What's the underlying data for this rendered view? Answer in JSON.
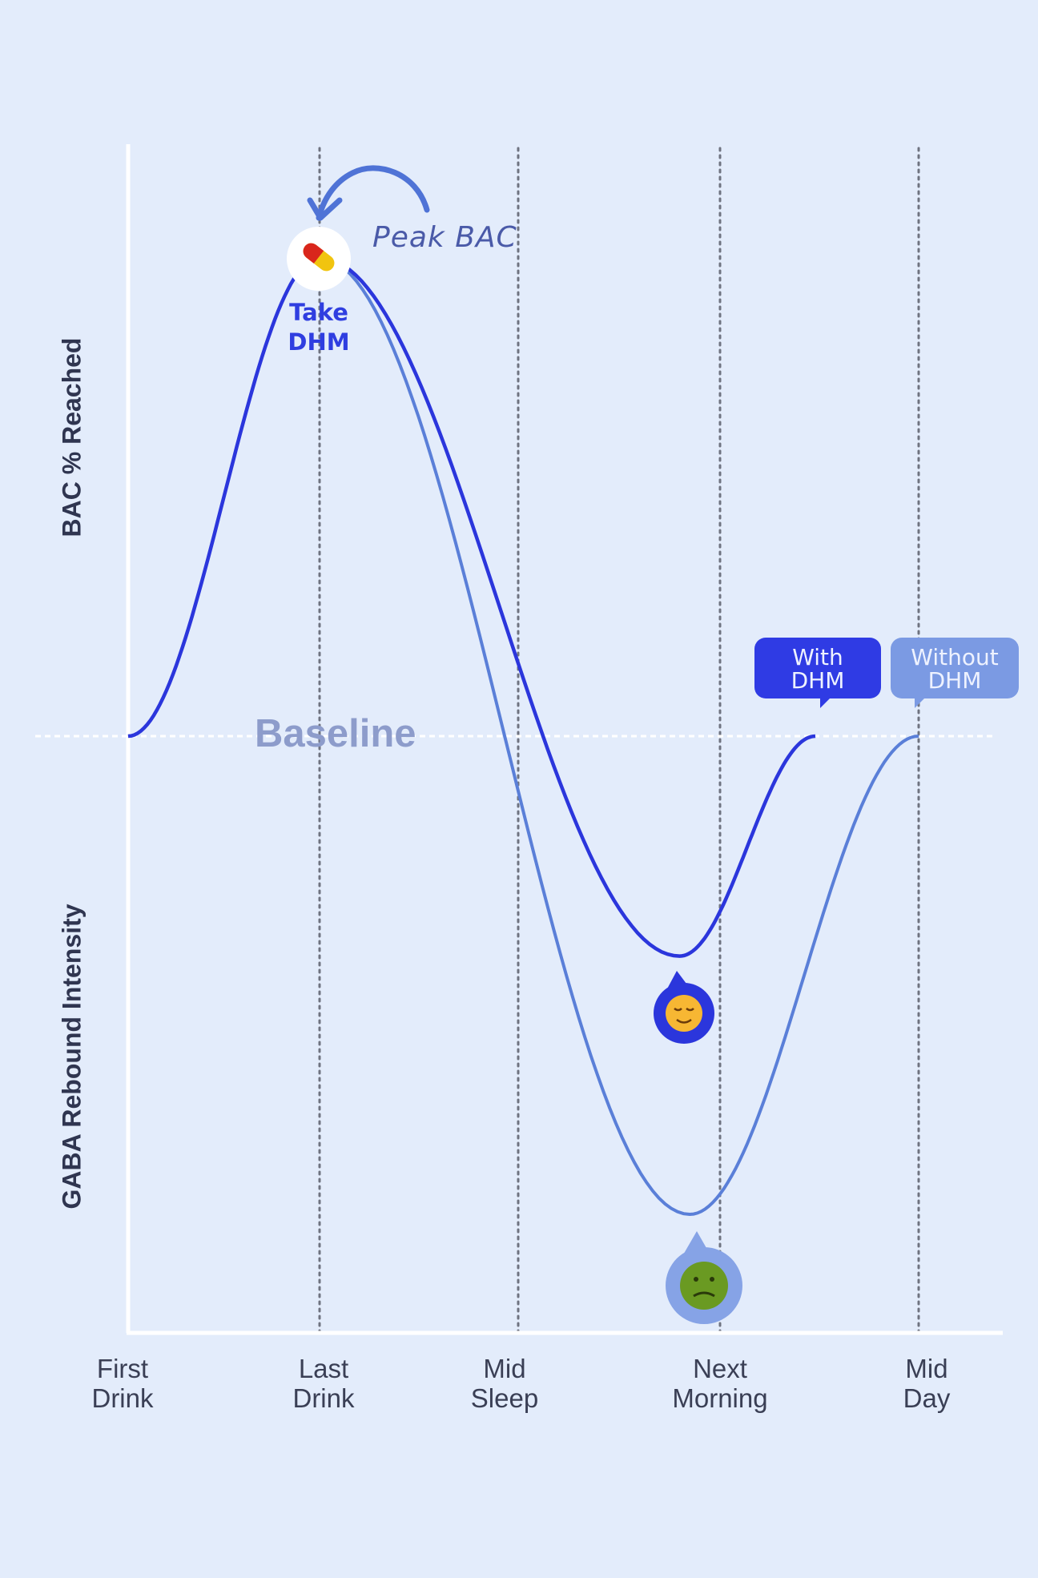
{
  "chart_data": {
    "type": "line",
    "title": "",
    "ylabel_top": "BAC % Reached",
    "ylabel_bottom": "GABA Rebound Intensity",
    "baseline_label": "Baseline",
    "categories": [
      "First Drink",
      "Last Drink",
      "Mid Sleep",
      "Next Morning",
      "Mid Day"
    ],
    "category_lines": [
      "First\nDrink",
      "Last\nDrink",
      "Mid\nSleep",
      "Next\nMorning",
      "Mid\nDay"
    ],
    "x_labels": [
      {
        "l1": "First",
        "l2": "Drink"
      },
      {
        "l1": "Last",
        "l2": "Drink"
      },
      {
        "l1": "Mid",
        "l2": "Sleep"
      },
      {
        "l1": "Next",
        "l2": "Morning"
      },
      {
        "l1": "Mid",
        "l2": "Day"
      }
    ],
    "series": [
      {
        "name": "Without DHM",
        "color": "#5a7fd8",
        "label_line1": "Without",
        "label_line2": "DHM",
        "points": [
          [
            0,
            0
          ],
          [
            1.0,
            1.0
          ],
          [
            2.85,
            -1.0
          ],
          [
            4.0,
            0
          ]
        ]
      },
      {
        "name": "With DHM",
        "color": "#2b36dc",
        "label_line1": "With",
        "label_line2": "DHM",
        "points": [
          [
            0,
            0
          ],
          [
            1.0,
            1.0
          ],
          [
            2.8,
            -0.46
          ],
          [
            3.48,
            0
          ]
        ]
      }
    ],
    "annotations": {
      "peak": "Peak BAC",
      "take_line1": "Take",
      "take_line2": "DHM",
      "pill_icon": "pill-icon",
      "with_emoji": "relieved-face-icon",
      "without_emoji": "nauseated-face-icon"
    },
    "grid": "vertical dotted lines at each category",
    "legend": "speech bubbles at curve ends"
  },
  "colors": {
    "background": "#e3ecfb",
    "with": "#2b36dc",
    "without": "#5a7fd8",
    "axis": "#ffffff",
    "take_dhm": "#2f3ee0"
  }
}
